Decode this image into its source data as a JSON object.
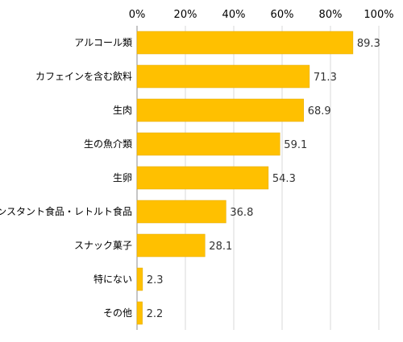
{
  "chart_data": {
    "type": "bar",
    "orientation": "horizontal",
    "categories": [
      "アルコール類",
      "カフェインを含む飲料",
      "生肉",
      "生の魚介類",
      "生卵",
      "インスタント食品・レトルト食品",
      "スナック菓子",
      "特にない",
      "その他"
    ],
    "values": [
      89.3,
      71.3,
      68.9,
      59.1,
      54.3,
      36.8,
      28.1,
      2.3,
      2.2
    ],
    "value_labels": [
      "89.3",
      "71.3",
      "68.9",
      "59.1",
      "54.3",
      "36.8",
      "28.1",
      "2.3",
      "2.2"
    ],
    "xlim": [
      0,
      100
    ],
    "x_ticks": [
      0,
      20,
      40,
      60,
      80,
      100
    ],
    "x_tick_labels": [
      "0%",
      "20%",
      "40%",
      "60%",
      "80%",
      "100%"
    ],
    "grid": true,
    "axis_position": "top",
    "bar_color": "#FFC000",
    "bar_border_color": "#E0A800",
    "grid_color": "#D9D9D9",
    "axis_color": "#8C8C8C",
    "label_color": "#000000",
    "value_label_color": "#333333"
  }
}
